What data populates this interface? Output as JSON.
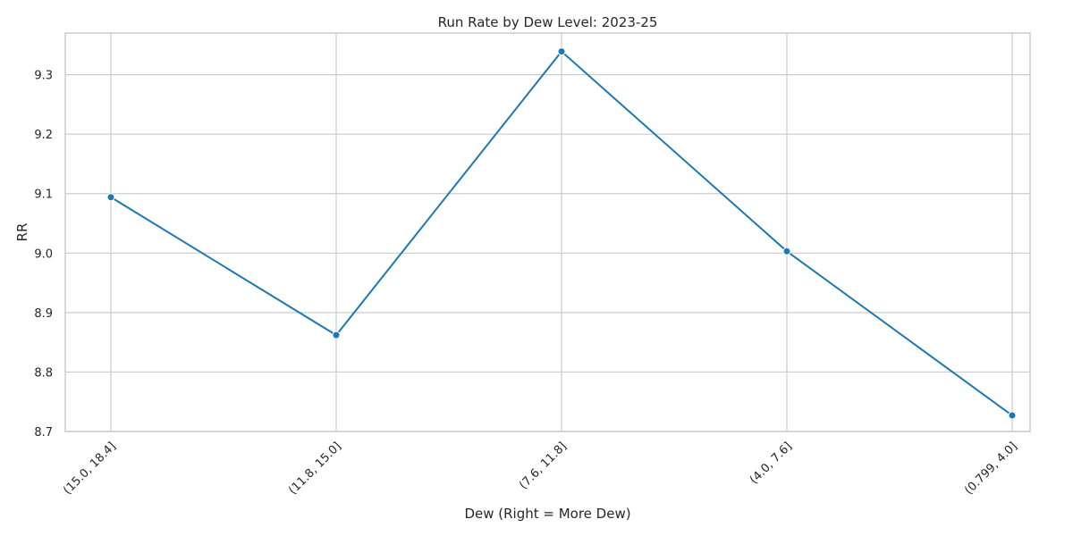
{
  "chart_data": {
    "type": "line",
    "title": "Run Rate by Dew Level: 2023-25",
    "xlabel": "Dew (Right = More Dew)",
    "ylabel": "RR",
    "categories": [
      "(15.0, 18.4]",
      "(11.8, 15.0]",
      "(7.6, 11.8]",
      "(4.0, 7.6]",
      "(0.799, 4.0]"
    ],
    "series": [
      {
        "values": [
          9.094,
          8.862,
          9.339,
          9.003,
          8.727
        ]
      }
    ],
    "ylim": [
      8.7,
      9.37
    ],
    "yticks": [
      "8.7",
      "8.8",
      "8.9",
      "9.0",
      "9.1",
      "9.2",
      "9.3"
    ],
    "grid": true,
    "colors": {
      "line": "#1f77b4",
      "grid": "#cccccc",
      "frame": "#cccccc"
    }
  }
}
